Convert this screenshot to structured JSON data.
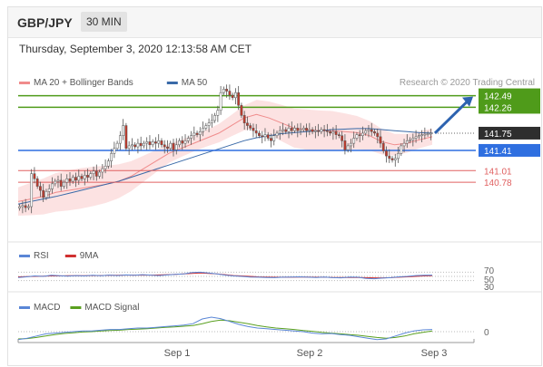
{
  "header": {
    "pair": "GBP/JPY",
    "timeframe": "30 MIN",
    "datetime": "Thursday, September 3, 2020 12:13:58 AM CET"
  },
  "colors": {
    "ma20": "#f08c8c",
    "ma50": "#3a6aa8",
    "support": "#2f6fe0",
    "resistance": "#4f9b1a",
    "target_low": "#e06060",
    "rsi": "#5a86d6",
    "rsi_ma": "#d03030",
    "macd": "#5a86d6",
    "signal": "#5aa020",
    "arrow": "#2d63b0",
    "price_label": "#2e2e2e"
  },
  "chart_data": [
    {
      "type": "candlestick",
      "legend": [
        {
          "label": "MA 20 + Bollinger Bands",
          "color": "#f08c8c"
        },
        {
          "label": "MA 50",
          "color": "#3a6aa8"
        }
      ],
      "credit": "Research © 2020 Trading Central",
      "x_ticks": [
        "Sep 1",
        "Sep 2",
        "Sep 3"
      ],
      "current_price": "141.75",
      "levels": [
        {
          "label": "142.49",
          "value": 142.49,
          "kind": "resistance",
          "color": "#4f9b1a"
        },
        {
          "label": "142.26",
          "value": 142.26,
          "kind": "resistance",
          "color": "#4f9b1a"
        },
        {
          "label": "141.41",
          "value": 141.41,
          "kind": "pivot",
          "color": "#2f6fe0"
        },
        {
          "label": "141.01",
          "value": 141.01,
          "kind": "support",
          "color": "#e06060"
        },
        {
          "label": "140.78",
          "value": 140.78,
          "kind": "support",
          "color": "#e06060"
        }
      ],
      "close": [
        140.3,
        140.32,
        140.28,
        140.3,
        140.95,
        140.85,
        140.7,
        140.62,
        140.48,
        140.6,
        140.65,
        140.75,
        140.8,
        140.82,
        140.7,
        140.78,
        140.85,
        140.8,
        140.88,
        140.82,
        140.9,
        140.85,
        140.92,
        140.88,
        140.95,
        141.0,
        140.9,
        140.98,
        141.05,
        141.1,
        141.2,
        141.35,
        141.45,
        141.55,
        141.7,
        141.9,
        141.45,
        141.5,
        141.52,
        141.48,
        141.55,
        141.5,
        141.55,
        141.58,
        141.52,
        141.58,
        141.55,
        141.6,
        141.52,
        141.48,
        141.45,
        141.55,
        141.42,
        141.52,
        141.6,
        141.55,
        141.6,
        141.65,
        141.7,
        141.75,
        141.72,
        141.78,
        141.85,
        141.9,
        141.95,
        142.0,
        142.1,
        142.2,
        142.55,
        142.62,
        142.58,
        142.5,
        142.45,
        142.55,
        142.3,
        142.1,
        141.95,
        141.9,
        141.85,
        141.8,
        141.75,
        141.7,
        141.68,
        141.72,
        141.65,
        141.6,
        141.7,
        141.75,
        141.8,
        141.82,
        141.78,
        141.85,
        141.8,
        141.85,
        141.8,
        141.82,
        141.85,
        141.8,
        141.82,
        141.78,
        141.8,
        141.78,
        141.82,
        141.8,
        141.78,
        141.75,
        141.78,
        141.72,
        141.7,
        141.6,
        141.42,
        141.5,
        141.55,
        141.65,
        141.72,
        141.7,
        141.75,
        141.8,
        141.82,
        141.78,
        141.75,
        141.68,
        141.55,
        141.4,
        141.3,
        141.25,
        141.22,
        141.25,
        141.35,
        141.5,
        141.55,
        141.6,
        141.62,
        141.65,
        141.68,
        141.7,
        141.72,
        141.73,
        141.74,
        141.75
      ],
      "ma20": [
        140.4,
        140.45,
        140.5,
        140.58,
        140.62,
        140.66,
        140.7,
        140.74,
        140.8,
        140.9,
        141.05,
        141.2,
        141.35,
        141.45,
        141.55,
        141.65,
        141.75,
        141.9,
        142.05,
        142.12,
        142.05,
        141.95,
        141.85,
        141.82,
        141.8,
        141.8,
        141.78,
        141.76,
        141.7,
        141.58,
        141.52,
        141.55,
        141.62,
        141.68
      ],
      "ma50": [
        140.35,
        140.4,
        140.45,
        140.5,
        140.56,
        140.62,
        140.68,
        140.74,
        140.8,
        140.88,
        140.96,
        141.04,
        141.12,
        141.2,
        141.28,
        141.36,
        141.44,
        141.52,
        141.6,
        141.66,
        141.7,
        141.74,
        141.76,
        141.78,
        141.8,
        141.82,
        141.83,
        141.84,
        141.84,
        141.82,
        141.8,
        141.78,
        141.76,
        141.75
      ],
      "forecast": {
        "from": 141.75,
        "to": 142.49
      }
    },
    {
      "type": "line",
      "name": "RSI",
      "legend": [
        {
          "label": "RSI",
          "color": "#5a86d6"
        },
        {
          "label": "9MA",
          "color": "#d03030"
        }
      ],
      "y_ticks": [
        "70",
        "50",
        "30"
      ],
      "ylim": [
        20,
        80
      ],
      "rsi": [
        45,
        48,
        52,
        50,
        55,
        53,
        51,
        54,
        52,
        55,
        53,
        56,
        54,
        57,
        55,
        58,
        56,
        54,
        57,
        60,
        62,
        68,
        70,
        66,
        62,
        56,
        52,
        50,
        47,
        46,
        45,
        44,
        46,
        47,
        48,
        46,
        45,
        47,
        44,
        43,
        47,
        46,
        40,
        39,
        42,
        44,
        48,
        50,
        54,
        55,
        56
      ],
      "ma": [
        48,
        49,
        50,
        51,
        52,
        52,
        53,
        53,
        53,
        54,
        54,
        55,
        55,
        56,
        56,
        56,
        56,
        57,
        58,
        60,
        62,
        64,
        66,
        64,
        62,
        58,
        54,
        52,
        50,
        48,
        47,
        46,
        46,
        46,
        47,
        47,
        46,
        46,
        45,
        45,
        45,
        45,
        44,
        43,
        43,
        44,
        46,
        48,
        50,
        52,
        53
      ]
    },
    {
      "type": "line",
      "name": "MACD",
      "legend": [
        {
          "label": "MACD",
          "color": "#5a86d6"
        },
        {
          "label": "MACD Signal",
          "color": "#5aa020"
        }
      ],
      "y_ticks": [
        "0"
      ],
      "ylim": [
        -0.5,
        0.5
      ],
      "macd": [
        -0.22,
        -0.18,
        -0.12,
        -0.06,
        -0.04,
        -0.02,
        0.0,
        0.02,
        0.02,
        0.04,
        0.06,
        0.06,
        0.08,
        0.1,
        0.1,
        0.12,
        0.14,
        0.16,
        0.18,
        0.22,
        0.35,
        0.4,
        0.36,
        0.28,
        0.2,
        0.14,
        0.1,
        0.08,
        0.06,
        0.04,
        0.02,
        0.0,
        -0.04,
        -0.06,
        -0.05,
        -0.08,
        -0.1,
        -0.14,
        -0.18,
        -0.22,
        -0.2,
        -0.12,
        -0.04,
        0.02,
        0.05,
        0.06
      ],
      "signal": [
        -0.2,
        -0.19,
        -0.16,
        -0.12,
        -0.08,
        -0.05,
        -0.03,
        -0.01,
        0.0,
        0.02,
        0.03,
        0.04,
        0.06,
        0.07,
        0.08,
        0.1,
        0.12,
        0.13,
        0.15,
        0.17,
        0.22,
        0.28,
        0.32,
        0.3,
        0.26,
        0.22,
        0.17,
        0.13,
        0.1,
        0.08,
        0.06,
        0.03,
        0.01,
        -0.02,
        -0.04,
        -0.06,
        -0.08,
        -0.1,
        -0.13,
        -0.16,
        -0.18,
        -0.16,
        -0.12,
        -0.06,
        -0.02,
        0.02
      ]
    }
  ]
}
